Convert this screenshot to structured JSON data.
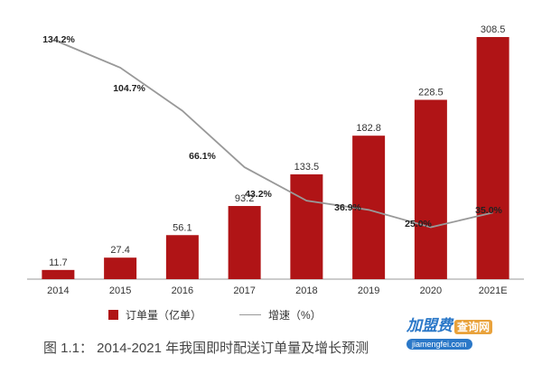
{
  "chart_data": {
    "type": "bar",
    "categories": [
      "2014",
      "2015",
      "2016",
      "2017",
      "2018",
      "2019",
      "2020",
      "2021E"
    ],
    "series": [
      {
        "name": "订单量（亿单）",
        "kind": "bar",
        "color": "#b01416",
        "values": [
          11.7,
          27.4,
          56.1,
          93.2,
          133.5,
          182.8,
          228.5,
          308.5
        ],
        "labels": [
          "11.7",
          "27.4",
          "56.1",
          "93.2",
          "133.5",
          "182.8",
          "228.5",
          "308.5"
        ]
      },
      {
        "name": "增速（%）",
        "kind": "line",
        "color": "#999999",
        "values": [
          134.2,
          104.7,
          66.1,
          43.2,
          36.9,
          25.0,
          35.0
        ],
        "x": [
          "2015",
          "2016",
          "2017",
          "2018",
          "2019",
          "2020",
          "2021E"
        ],
        "labels": [
          "134.2%",
          "104.7%",
          "66.1%",
          "43.2%",
          "36.9%",
          "25.0%",
          "35.0%"
        ]
      }
    ],
    "ylim_bar": [
      0,
      320
    ],
    "ylim_line": [
      0,
      170
    ],
    "grid": false,
    "legend_position": "bottom-left"
  },
  "legend": {
    "bar_label": "订单量（亿单）",
    "line_label": "增速（%）"
  },
  "caption": "图 1.1： 2014-2021 年我国即时配送订单量及增长预测",
  "watermark": {
    "top": "加盟费",
    "box": "查询网",
    "bottom": "jiamengfei.com"
  }
}
